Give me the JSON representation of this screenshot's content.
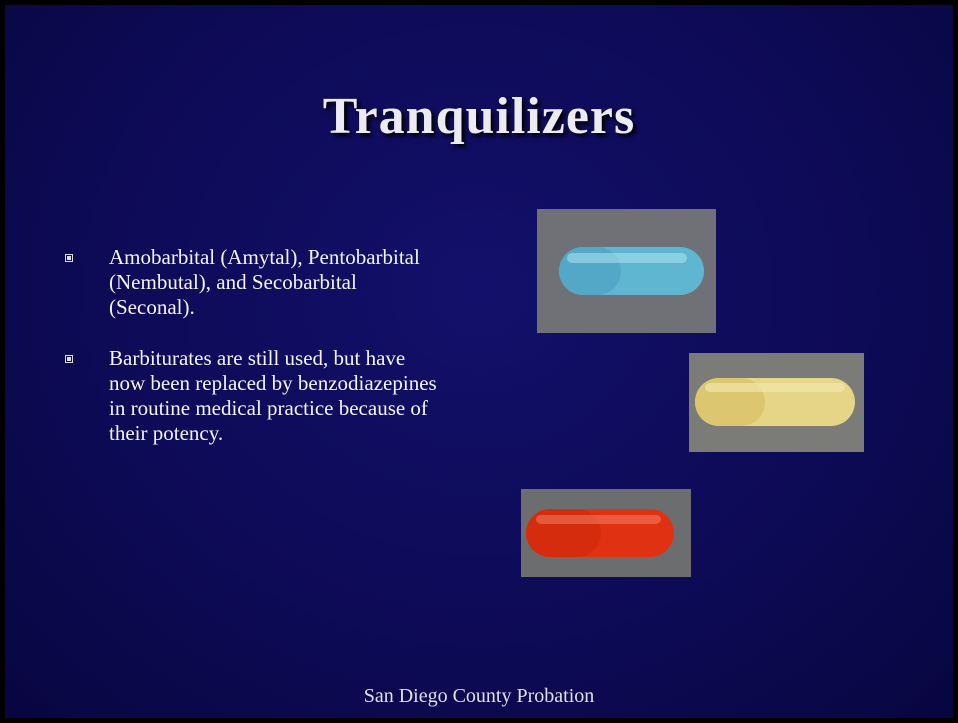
{
  "slide": {
    "title": "Tranquilizers",
    "bullets": [
      "Amobarbital (Amytal), Pentobarbital (Nembutal), and Secobarbital (Seconal).",
      "Barbiturates are still used, but have now been replaced by benzodiazepines in routine medical practice because of their potency."
    ],
    "footer": "San Diego County Probation"
  }
}
